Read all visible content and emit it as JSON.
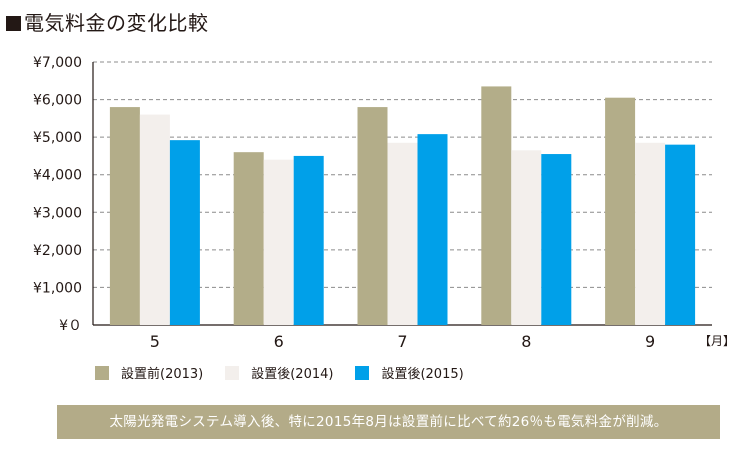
{
  "title_mark": "■",
  "title_text": "電気料金の変化比較",
  "chart_data": {
    "type": "bar",
    "categories": [
      "5",
      "6",
      "7",
      "8",
      "9"
    ],
    "x_unit_label": "【月】",
    "ylim": [
      0,
      7000
    ],
    "yticks": [
      0,
      1000,
      2000,
      3000,
      4000,
      5000,
      6000,
      7000
    ],
    "ytick_labels": [
      "¥０",
      "¥1,000",
      "¥2,000",
      "¥3,000",
      "¥4,000",
      "¥5,000",
      "¥6,000",
      "¥7,000"
    ],
    "grid": "horizontal-dashed",
    "legend_position": "bottom",
    "series": [
      {
        "name": "設置前(2013)",
        "color": "#b3ad89",
        "values": [
          5800,
          4600,
          5800,
          6350,
          6050
        ]
      },
      {
        "name": "設置後(2014)",
        "color": "#f3efec",
        "values": [
          5600,
          4400,
          4850,
          4650,
          4850
        ]
      },
      {
        "name": "設置後(2015)",
        "color": "#00a0e9",
        "values": [
          4920,
          4500,
          5080,
          4550,
          4800
        ]
      }
    ]
  },
  "note": "太陽光発電システム導入後、特に2015年8月は設置前に比べて約26％も電気料金が削減。"
}
